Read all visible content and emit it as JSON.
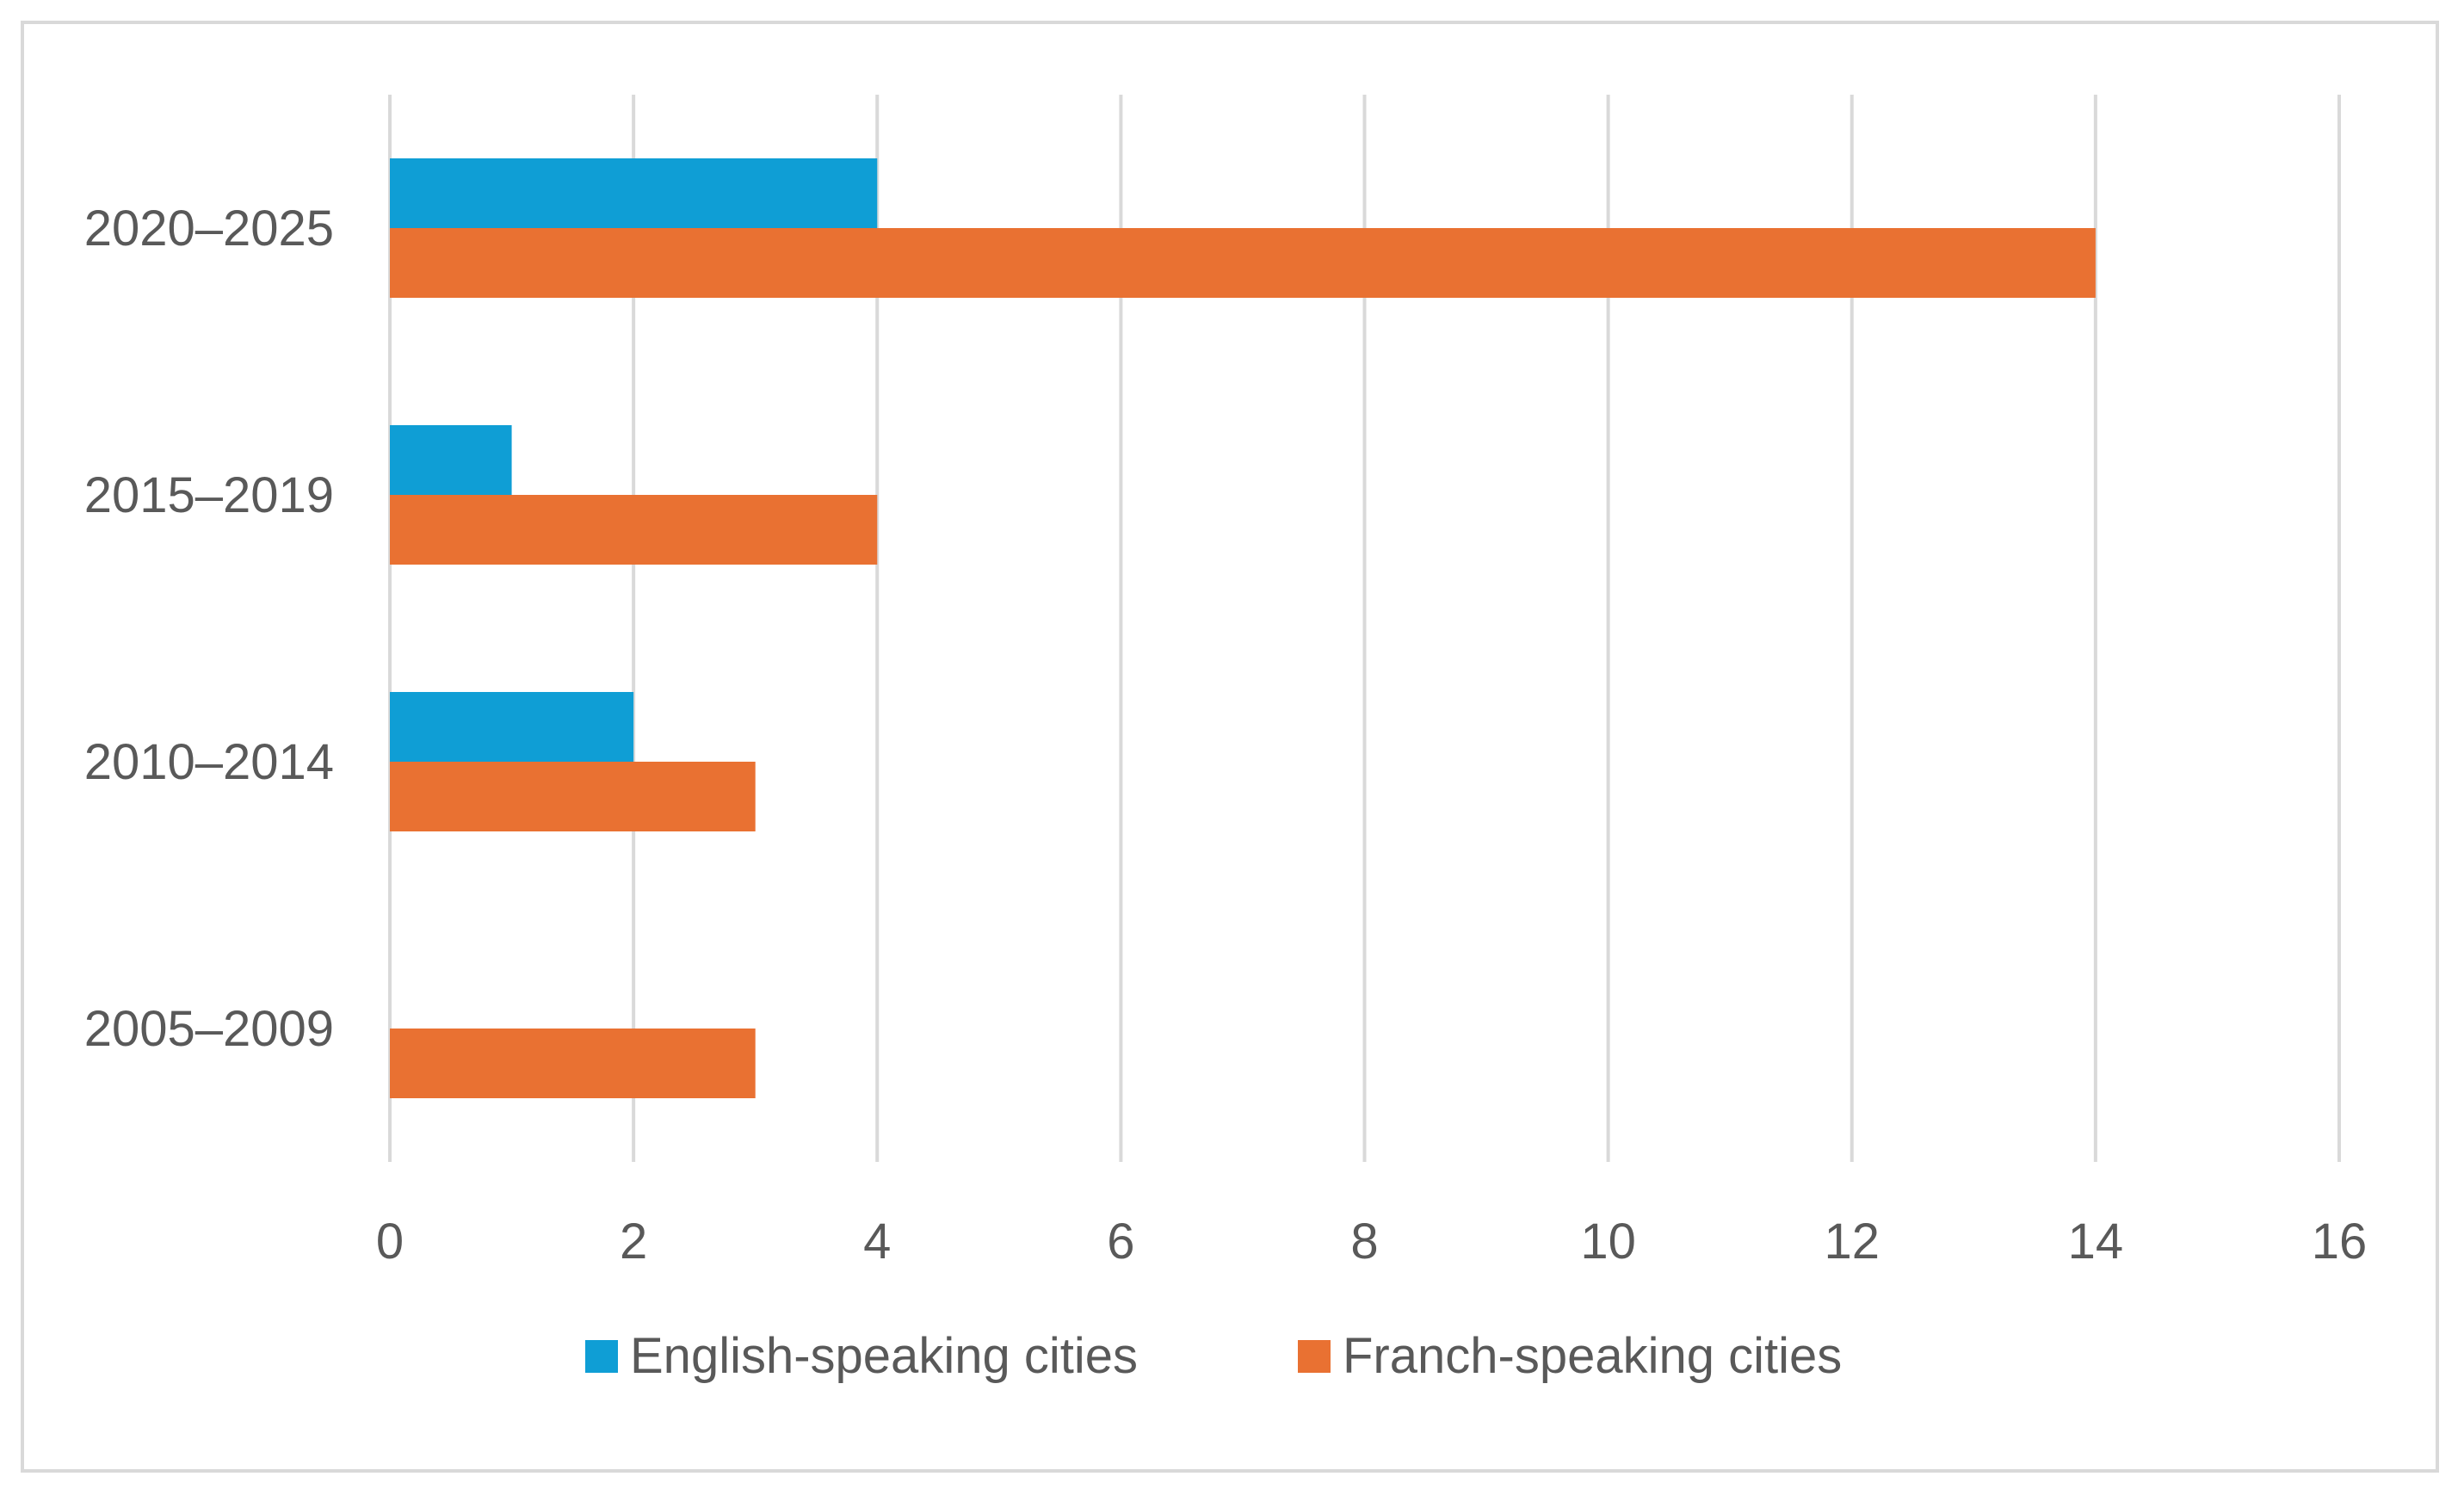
{
  "chart_data": {
    "type": "bar",
    "orientation": "horizontal",
    "categories": [
      "2005–2009",
      "2010–2014",
      "2015–2019",
      "2020–2025"
    ],
    "series": [
      {
        "name": "English-speaking cities",
        "color": "#0f9ed5",
        "values": [
          0,
          2,
          1,
          4
        ]
      },
      {
        "name": "Franch-speaking cities",
        "color": "#e97132",
        "values": [
          3,
          3,
          4,
          14
        ]
      }
    ],
    "xlim": [
      0,
      16
    ],
    "xticks": [
      "0",
      "2",
      "4",
      "6",
      "8",
      "10",
      "12",
      "14",
      "16"
    ],
    "grid": "vertical",
    "legend": "bottom",
    "title": "",
    "xlabel": "",
    "ylabel": ""
  }
}
